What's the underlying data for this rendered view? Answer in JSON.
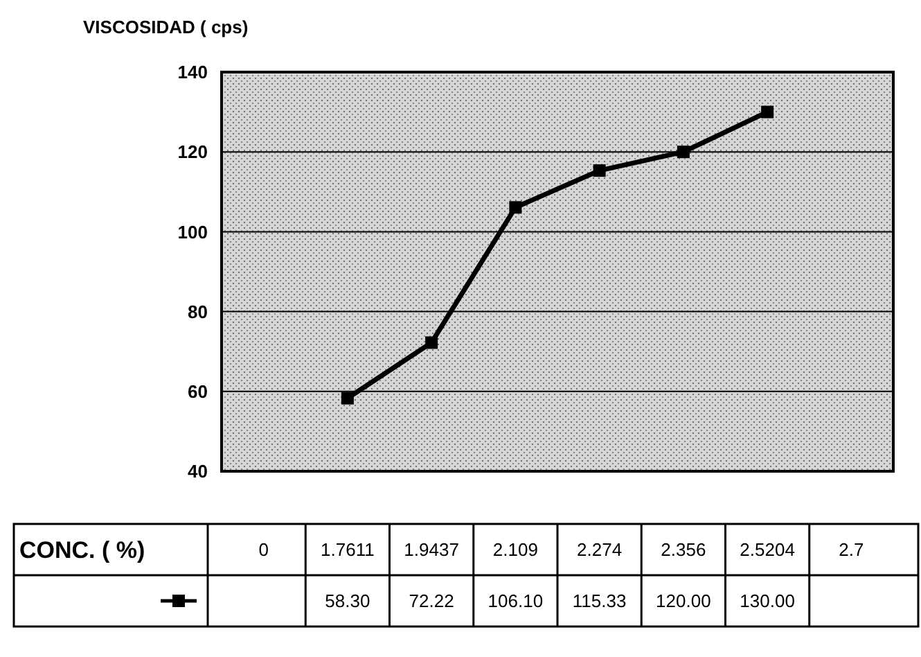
{
  "chart_data": {
    "type": "line",
    "ylabel": "VISCOSIDAD ( cps)",
    "xlabel": "CONC. ( %)",
    "categories": [
      "0",
      "1.7611",
      "1.9437",
      "2.109",
      "2.274",
      "2.356",
      "2.5204",
      "2.7"
    ],
    "series": [
      {
        "color": "#000000",
        "values": [
          null,
          58.3,
          72.22,
          106.1,
          115.33,
          120.0,
          130.0,
          null
        ],
        "value_labels": [
          null,
          "58.30",
          "72.22",
          "106.10",
          "115.33",
          "120.00",
          "130.00",
          null
        ]
      }
    ],
    "ylim": [
      40,
      140
    ],
    "yticks": [
      40,
      60,
      80,
      100,
      120,
      140
    ],
    "grid": "y",
    "marker": "square",
    "line_style": "solid"
  }
}
